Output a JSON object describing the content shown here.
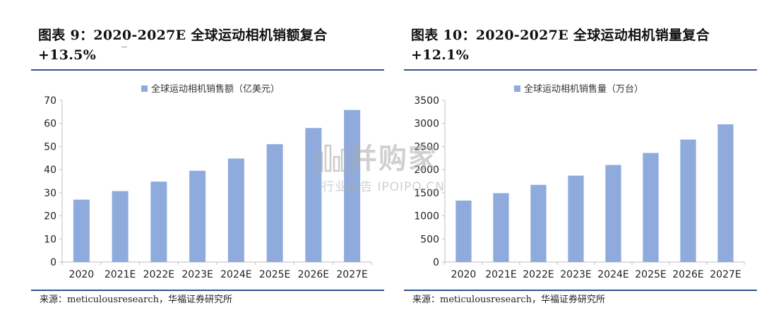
{
  "left": {
    "title": "图表 9：2020-2027E 全球运动相机销额复合+13.5%",
    "source": "来源：meticulousresearch，华福证券研究所"
  },
  "right": {
    "title": "图表 10：2020-2027E 全球运动相机销量复合+12.1%",
    "source": "来源：meticulousresearch，华福证券研究所"
  },
  "watermark": {
    "main": "并购家",
    "sub": "行业报告 IPOIPO.CN"
  },
  "chart_data": [
    {
      "type": "bar",
      "categories": [
        "2020",
        "2021E",
        "2022E",
        "2023E",
        "2024E",
        "2025E",
        "2026E",
        "2027E"
      ],
      "series": [
        {
          "name": "全球运动相机销售额（亿美元）",
          "values": [
            27,
            30.7,
            34.8,
            39.5,
            44.8,
            51,
            58,
            65.8
          ]
        }
      ],
      "ylim": [
        0,
        70
      ],
      "yticks": [
        "0",
        "10",
        "20",
        "30",
        "40",
        "50",
        "60",
        "70"
      ],
      "legend": "top-center",
      "grid": false,
      "bar_color": "#8faadc"
    },
    {
      "type": "bar",
      "categories": [
        "2020",
        "2021E",
        "2022E",
        "2023E",
        "2024E",
        "2025E",
        "2026E",
        "2027E"
      ],
      "series": [
        {
          "name": "全球运动相机销售量（万台）",
          "values": [
            1330,
            1490,
            1670,
            1870,
            2100,
            2360,
            2650,
            2980
          ]
        }
      ],
      "ylim": [
        0,
        3500
      ],
      "yticks": [
        "0",
        "500",
        "1000",
        "1500",
        "2000",
        "2500",
        "3000",
        "3500"
      ],
      "legend": "top-center",
      "grid": false,
      "bar_color": "#8faadc"
    }
  ]
}
